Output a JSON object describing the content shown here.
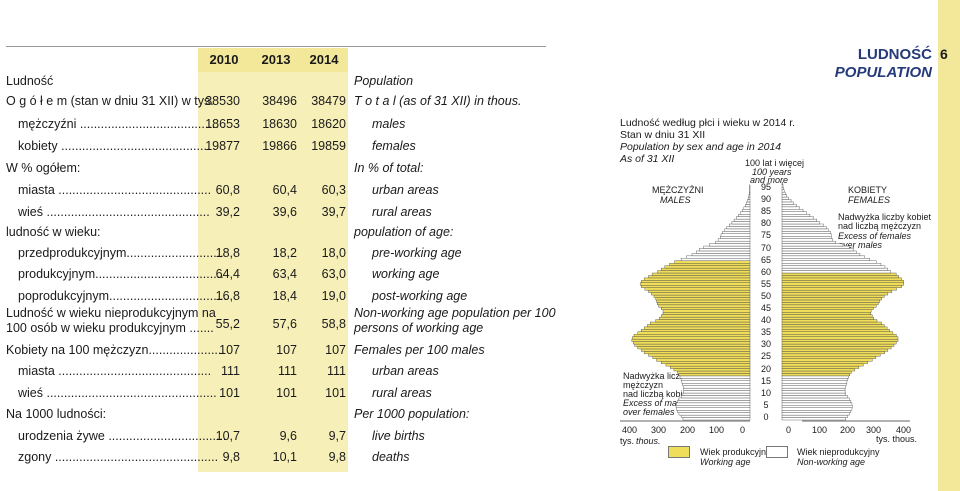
{
  "header": {
    "pl": "LUDNOŚĆ",
    "en": "POPULATION",
    "page_number": "6"
  },
  "table": {
    "years": [
      "2010",
      "2013",
      "2014"
    ],
    "section_pl": "Ludność",
    "section_en": "Population",
    "rows": [
      {
        "pl": "O g ó ł e m (stan w dniu 31 XII) w tys.",
        "v": [
          "38530",
          "38496",
          "38479"
        ],
        "en": "T o t a l (as of 31 XII) in thous.",
        "indent": 0
      },
      {
        "pl": "mężczyźni ........................................",
        "v": [
          "18653",
          "18630",
          "18620"
        ],
        "en": "males",
        "indent": 1
      },
      {
        "pl": "kobiety ...........................................",
        "v": [
          "19877",
          "19866",
          "19859"
        ],
        "en": "females",
        "indent": 1
      },
      {
        "pl": "W % ogółem:",
        "v": [
          "",
          "",
          ""
        ],
        "en": "In % of total:",
        "indent": 0
      },
      {
        "pl": "miasta ............................................",
        "v": [
          "60,8",
          "60,4",
          "60,3"
        ],
        "en": "urban areas",
        "indent": 1
      },
      {
        "pl": "wieś ...............................................",
        "v": [
          "39,2",
          "39,6",
          "39,7"
        ],
        "en": "rural areas",
        "indent": 1
      },
      {
        "pl": "ludność w wieku:",
        "v": [
          "",
          "",
          ""
        ],
        "en": "population of age:",
        "indent": 0
      },
      {
        "pl": "przedprodukcyjnym............................",
        "v": [
          "18,8",
          "18,2",
          "18,0"
        ],
        "en": "pre-working age",
        "indent": 1
      },
      {
        "pl": "produkcyjnym.....................................",
        "v": [
          "64,4",
          "63,4",
          "63,0"
        ],
        "en": "working age",
        "indent": 1
      },
      {
        "pl": "poprodukcyjnym..................................",
        "v": [
          "16,8",
          "18,4",
          "19,0"
        ],
        "en": "post-working age",
        "indent": 1
      }
    ],
    "dependency": {
      "pl1": "Ludność w wieku nieprodukcyjnym na",
      "pl2": "100 osób w wieku produkcyjnym .......",
      "v": [
        "55,2",
        "57,6",
        "58,8"
      ],
      "en1": "Non-working age population per 100",
      "en2": "persons of working age"
    },
    "rows2": [
      {
        "pl": "Kobiety na 100 mężczyzn......................",
        "v": [
          "107",
          "107",
          "107"
        ],
        "en": "Females per 100 males",
        "indent": 0
      },
      {
        "pl": "miasta ............................................",
        "v": [
          "111",
          "111",
          "111"
        ],
        "en": "urban areas",
        "indent": 1
      },
      {
        "pl": "wieś .................................................",
        "v": [
          "101",
          "101",
          "101"
        ],
        "en": "rural areas",
        "indent": 1
      },
      {
        "pl": "Na 1000 ludności:",
        "v": [
          "",
          "",
          ""
        ],
        "en": "Per 1000 population:",
        "indent": 0
      },
      {
        "pl": "urodzenia żywe ..................................",
        "v": [
          "10,7",
          "9,6",
          "9,7"
        ],
        "en": "live births",
        "indent": 1
      },
      {
        "pl": "zgony ...............................................",
        "v": [
          "9,8",
          "10,1",
          "9,8"
        ],
        "en": "deaths",
        "indent": 1
      }
    ]
  },
  "chart": {
    "title_pl1": "Ludność według płci i wieku w 2014 r.",
    "title_pl2": "Stan w dniu 31 XII",
    "title_en1": "Population by sex and age in 2014",
    "title_en2": "As of 31 XII",
    "top_age_pl": "100 lat i więcej",
    "top_age_en1": "100 years",
    "top_age_en2": "and more",
    "males_pl": "MĘŻCZYŹNI",
    "males_en": "MALES",
    "females_pl": "KOBIETY",
    "females_en": "FEMALES",
    "excess_f_pl1": "Nadwyżka liczby kobiet",
    "excess_f_pl2": "nad liczbą mężczyzn",
    "excess_f_en1": "Excess of females",
    "excess_f_en2": "over males",
    "excess_m_pl1": "Nadwyżka liczby",
    "excess_m_pl2": "mężczyzn",
    "excess_m_pl3": "nad liczbą kobiet",
    "excess_m_en1": "Excess of males",
    "excess_m_en2": "over females",
    "x_unit_pl": "tys.",
    "x_unit_en": "thous.",
    "x_unit_right": "tys. thous.",
    "legend_working_pl": "Wiek produkcyjny",
    "legend_working_en": "Working age",
    "legend_nonworking_pl": "Wiek nieprodukcyjny",
    "legend_nonworking_en": "Non-working age",
    "colors": {
      "working": "#f0de5a",
      "nonworking": "#ffffff",
      "outline": "#444444"
    }
  },
  "chart_data": {
    "type": "bar",
    "x_ticks_left": [
      "400",
      "300",
      "200",
      "100",
      "0"
    ],
    "x_ticks_right": [
      "0",
      "100",
      "200",
      "300",
      "400"
    ],
    "y_ticks": [
      "95",
      "90",
      "85",
      "80",
      "75",
      "70",
      "65",
      "60",
      "55",
      "50",
      "45",
      "40",
      "35",
      "30",
      "25",
      "20",
      "15",
      "10",
      "5",
      "0"
    ],
    "males_thous": [
      185,
      190,
      196,
      200,
      203,
      204,
      203,
      200,
      196,
      190,
      185,
      183,
      183,
      184,
      186,
      188,
      190,
      193,
      196,
      200,
      210,
      220,
      232,
      245,
      258,
      268,
      280,
      292,
      300,
      310,
      318,
      322,
      326,
      325,
      320,
      310,
      300,
      292,
      283,
      275,
      260,
      250,
      245,
      240,
      240,
      245,
      252,
      256,
      258,
      260,
      265,
      272,
      280,
      290,
      300,
      303,
      300,
      292,
      280,
      270,
      255,
      245,
      235,
      222,
      208,
      190,
      175,
      160,
      148,
      140,
      128,
      112,
      95,
      88,
      82,
      80,
      76,
      70,
      64,
      57,
      50,
      44,
      38,
      32,
      26,
      21,
      17,
      13,
      10,
      7,
      5,
      3,
      2,
      1,
      1,
      1,
      0
    ],
    "females_thous": [
      176,
      181,
      186,
      190,
      193,
      194,
      193,
      190,
      186,
      181,
      176,
      174,
      174,
      175,
      177,
      179,
      181,
      184,
      187,
      191,
      201,
      212,
      224,
      236,
      249,
      259,
      271,
      283,
      292,
      301,
      309,
      315,
      320,
      320,
      315,
      306,
      297,
      290,
      282,
      275,
      262,
      253,
      249,
      245,
      246,
      252,
      260,
      266,
      270,
      275,
      282,
      292,
      303,
      316,
      330,
      336,
      336,
      330,
      322,
      315,
      300,
      292,
      284,
      273,
      260,
      242,
      228,
      215,
      205,
      198,
      186,
      168,
      148,
      140,
      136,
      136,
      134,
      128,
      122,
      114,
      104,
      96,
      87,
      77,
      68,
      58,
      49,
      40,
      32,
      25,
      18,
      13,
      9,
      6,
      4,
      3,
      2
    ],
    "working_age_male": [
      18,
      64
    ],
    "working_age_female": [
      18,
      59
    ],
    "xlim": [
      0,
      400
    ]
  }
}
